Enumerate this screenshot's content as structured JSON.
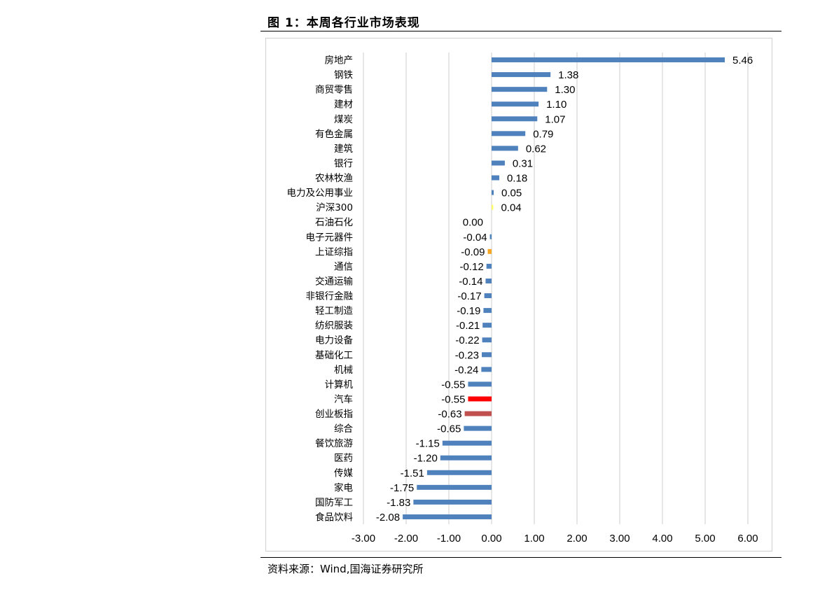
{
  "header": {
    "title": "图 1：本周各行业市场表现"
  },
  "footer": {
    "source": "资料来源：Wind,国海证券研究所"
  },
  "chart_data": {
    "type": "bar",
    "orientation": "horizontal",
    "title": "",
    "xlabel": "",
    "ylabel": "",
    "xlim": [
      -3.0,
      6.0
    ],
    "xticks": [
      -3.0,
      -2.0,
      -1.0,
      0.0,
      1.0,
      2.0,
      3.0,
      4.0,
      5.0,
      6.0
    ],
    "xtick_labels": [
      "-3.00",
      "-2.00",
      "-1.00",
      "0.00",
      "1.00",
      "2.00",
      "3.00",
      "4.00",
      "5.00",
      "6.00"
    ],
    "grid": "vertical",
    "categories": [
      "房地产",
      "钢铁",
      "商贸零售",
      "建材",
      "煤炭",
      "有色金属",
      "建筑",
      "银行",
      "农林牧渔",
      "电力及公用事业",
      "沪深300",
      "石油石化",
      "电子元器件",
      "上证综指",
      "通信",
      "交通运输",
      "非银行金融",
      "轻工制造",
      "纺织服装",
      "电力设备",
      "基础化工",
      "机械",
      "计算机",
      "汽车",
      "创业板指",
      "综合",
      "餐饮旅游",
      "医药",
      "传媒",
      "家电",
      "国防军工",
      "食品饮料"
    ],
    "values": [
      5.46,
      1.38,
      1.3,
      1.1,
      1.07,
      0.79,
      0.62,
      0.31,
      0.18,
      0.05,
      0.04,
      0.0,
      -0.04,
      -0.09,
      -0.12,
      -0.14,
      -0.17,
      -0.19,
      -0.21,
      -0.22,
      -0.23,
      -0.24,
      -0.55,
      -0.55,
      -0.63,
      -0.65,
      -1.15,
      -1.2,
      -1.51,
      -1.75,
      -1.83,
      -2.08
    ],
    "value_labels": [
      "5.46",
      "1.38",
      "1.30",
      "1.10",
      "1.07",
      "0.79",
      "0.62",
      "0.31",
      "0.18",
      "0.05",
      "0.04",
      "0.00",
      "-0.04",
      "-0.09",
      "-0.12",
      "-0.14",
      "-0.17",
      "-0.19",
      "-0.21",
      "-0.22",
      "-0.23",
      "-0.24",
      "-0.55",
      "-0.55",
      "-0.63",
      "-0.65",
      "-1.15",
      "-1.20",
      "-1.51",
      "-1.75",
      "-1.83",
      "-2.08"
    ],
    "colors": {
      "default": "#4f81bd",
      "沪深300": "#ffff66",
      "上证综指": "#f5a623",
      "汽车": "#ff0000",
      "创业板指": "#c0504d"
    },
    "gridline_color": "#d9d9d9"
  }
}
